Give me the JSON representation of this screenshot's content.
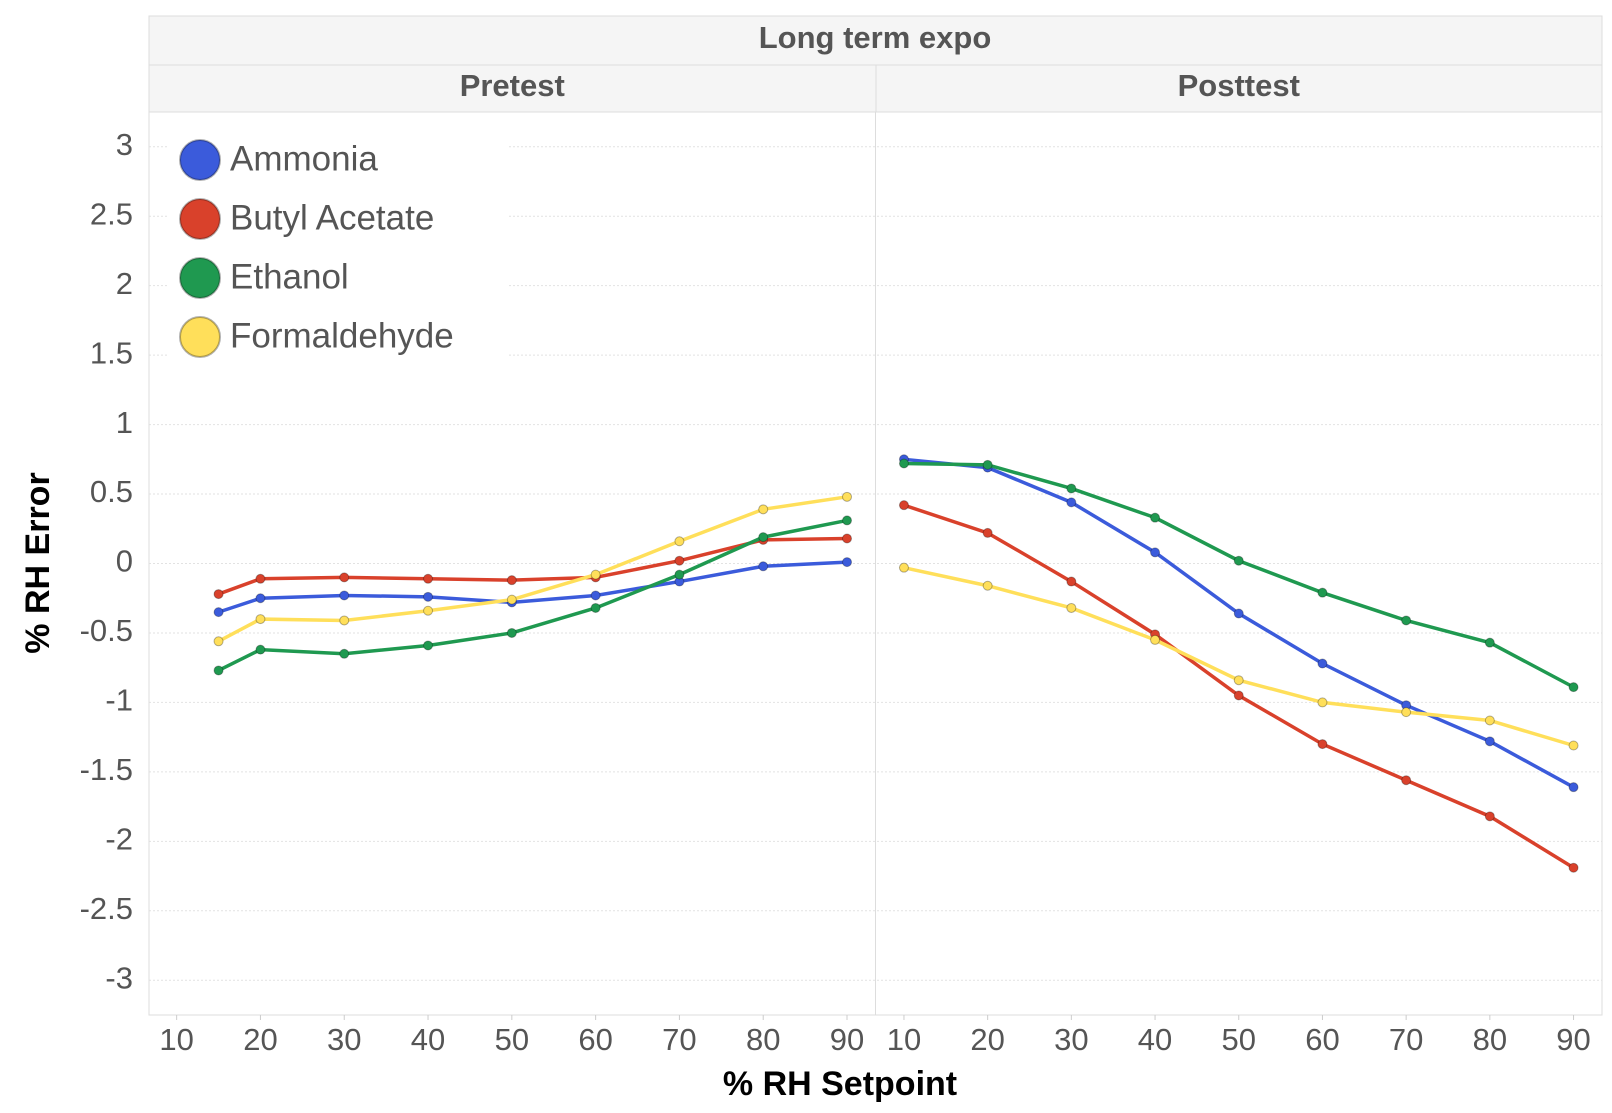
{
  "chart_data": {
    "type": "line",
    "title": "Long term expo",
    "xlabel": "% RH Setpoint",
    "ylabel": "% RH Error",
    "ylim": [
      -3.25,
      3.25
    ],
    "yticks": [
      3,
      2.5,
      2,
      1.5,
      1,
      0.5,
      0,
      -0.5,
      -1,
      -1.5,
      -2,
      -2.5,
      -3
    ],
    "grid": true,
    "legend": "upper left",
    "series": [
      {
        "name": "Ammonia",
        "color": "#3b5bdb"
      },
      {
        "name": "Butyl Acetate",
        "color": "#d9412b"
      },
      {
        "name": "Ethanol",
        "color": "#1f9950"
      },
      {
        "name": "Formaldehyde",
        "color": "#ffdf5a"
      }
    ],
    "facets": [
      {
        "title": "Pretest",
        "xlim": [
          6.7,
          93.4
        ],
        "xticks": [
          10,
          20,
          30,
          40,
          50,
          60,
          70,
          80,
          90
        ],
        "x": [
          15,
          20,
          30,
          40,
          50,
          60,
          70,
          80,
          90
        ],
        "series": [
          {
            "values": [
              -0.35,
              -0.25,
              -0.23,
              -0.24,
              -0.28,
              -0.23,
              -0.13,
              -0.02,
              0.01
            ]
          },
          {
            "values": [
              -0.22,
              -0.11,
              -0.1,
              -0.11,
              -0.12,
              -0.1,
              0.02,
              0.17,
              0.18
            ]
          },
          {
            "values": [
              -0.77,
              -0.62,
              -0.65,
              -0.59,
              -0.5,
              -0.32,
              -0.08,
              0.19,
              0.31
            ]
          },
          {
            "values": [
              -0.56,
              -0.4,
              -0.41,
              -0.34,
              -0.26,
              -0.08,
              0.16,
              0.39,
              0.48
            ]
          }
        ]
      },
      {
        "title": "Posttest",
        "xlim": [
          6.6,
          93.4
        ],
        "xticks": [
          10,
          20,
          30,
          40,
          50,
          60,
          70,
          80,
          90
        ],
        "x": [
          10,
          20,
          30,
          40,
          50,
          60,
          70,
          80,
          90
        ],
        "series": [
          {
            "values": [
              0.75,
              0.69,
              0.44,
              0.08,
              -0.36,
              -0.72,
              -1.02,
              -1.28,
              -1.61
            ]
          },
          {
            "values": [
              0.42,
              0.22,
              -0.13,
              -0.51,
              -0.95,
              -1.3,
              -1.56,
              -1.82,
              -2.19
            ]
          },
          {
            "values": [
              0.72,
              0.71,
              0.54,
              0.33,
              0.02,
              -0.21,
              -0.41,
              -0.57,
              -0.89
            ]
          },
          {
            "values": [
              -0.03,
              -0.16,
              -0.32,
              -0.55,
              -0.84,
              -1.0,
              -1.07,
              -1.13,
              -1.31
            ]
          }
        ]
      }
    ]
  }
}
